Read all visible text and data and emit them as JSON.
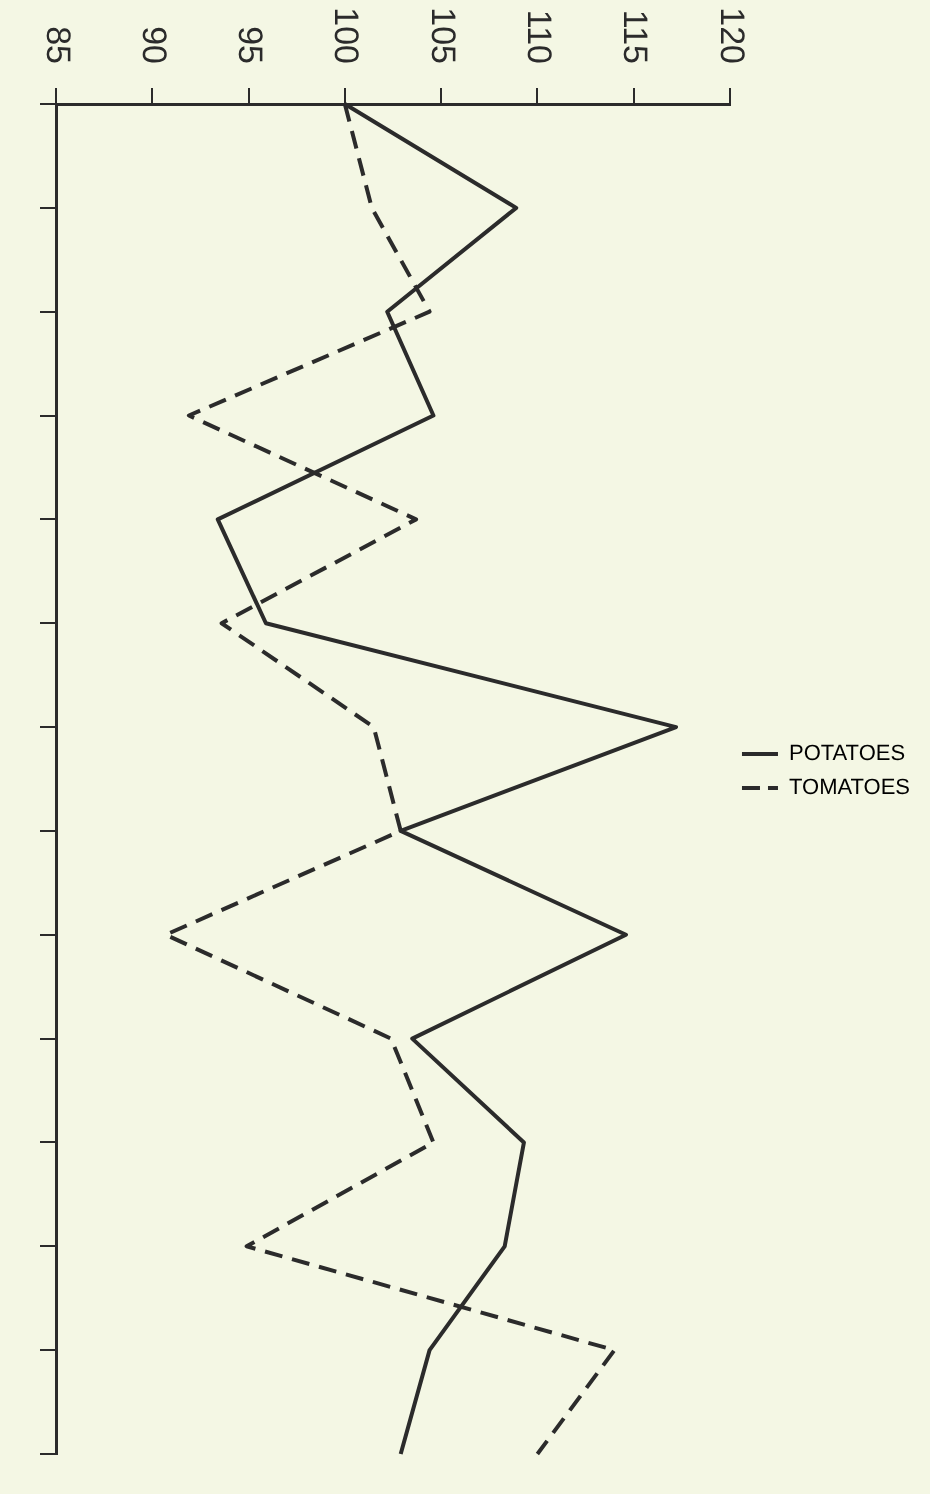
{
  "chart_data": {
    "type": "line",
    "orientation": "horizontal",
    "categories": [
      null,
      null,
      null,
      null,
      null,
      null,
      null,
      null,
      null,
      null,
      null,
      null,
      null,
      null
    ],
    "series": [
      {
        "name": "POTATOES",
        "color": "#2b2b2b",
        "line_style": "solid",
        "values": [
          100,
          108.9,
          102.2,
          104.6,
          93.4,
          95.9,
          117.2,
          102.9,
          114.6,
          103.5,
          109.3,
          108.3,
          104.4,
          102.9
        ]
      },
      {
        "name": "TOMATOES",
        "color": "#2b2b2b",
        "line_style": "dashed",
        "values": [
          100,
          101.4,
          104.4,
          91.9,
          103.7,
          93.6,
          101.5,
          102.9,
          90.7,
          102.4,
          104.6,
          94.9,
          114,
          110
        ]
      }
    ],
    "xlim": [
      85,
      120
    ],
    "xticks": [
      85,
      90,
      95,
      100,
      105,
      110,
      115,
      120
    ],
    "grid": false,
    "legend": "right",
    "marker": "none"
  }
}
